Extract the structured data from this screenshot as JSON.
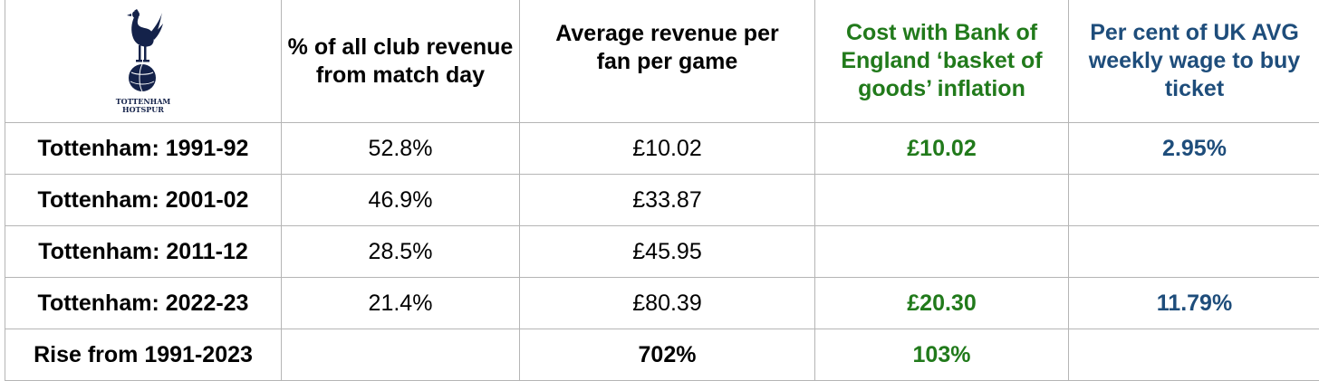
{
  "logo": {
    "crest_icon": "cockerel-on-ball-icon",
    "line1": "TOTTENHAM",
    "line2": "HOTSPUR",
    "color": "#14224a"
  },
  "colors": {
    "green_text": "#217a1b",
    "blue_text": "#1e4d7b",
    "grid": "#b5b5b5"
  },
  "headers": {
    "matchday_share": "% of all club revenue from match day",
    "avg_revenue": "Average revenue per fan per game",
    "inflation_cost": "Cost with Bank of England ‘basket of goods’ inflation",
    "wage_share": "Per cent of UK AVG weekly wage to buy ticket"
  },
  "rows": [
    {
      "label": "Tottenham: 1991-92",
      "matchday_share": "52.8%",
      "avg_revenue": "£10.02",
      "inflation_cost": "£10.02",
      "wage_share": "2.95%"
    },
    {
      "label": "Tottenham: 2001-02",
      "matchday_share": "46.9%",
      "avg_revenue": "£33.87",
      "inflation_cost": "",
      "wage_share": ""
    },
    {
      "label": "Tottenham: 2011-12",
      "matchday_share": "28.5%",
      "avg_revenue": "£45.95",
      "inflation_cost": "",
      "wage_share": ""
    },
    {
      "label": "Tottenham: 2022-23",
      "matchday_share": "21.4%",
      "avg_revenue": "£80.39",
      "inflation_cost": "£20.30",
      "wage_share": "11.79%"
    },
    {
      "label": "Rise from 1991-2023",
      "matchday_share": "",
      "avg_revenue": "702%",
      "inflation_cost": "103%",
      "wage_share": ""
    }
  ]
}
